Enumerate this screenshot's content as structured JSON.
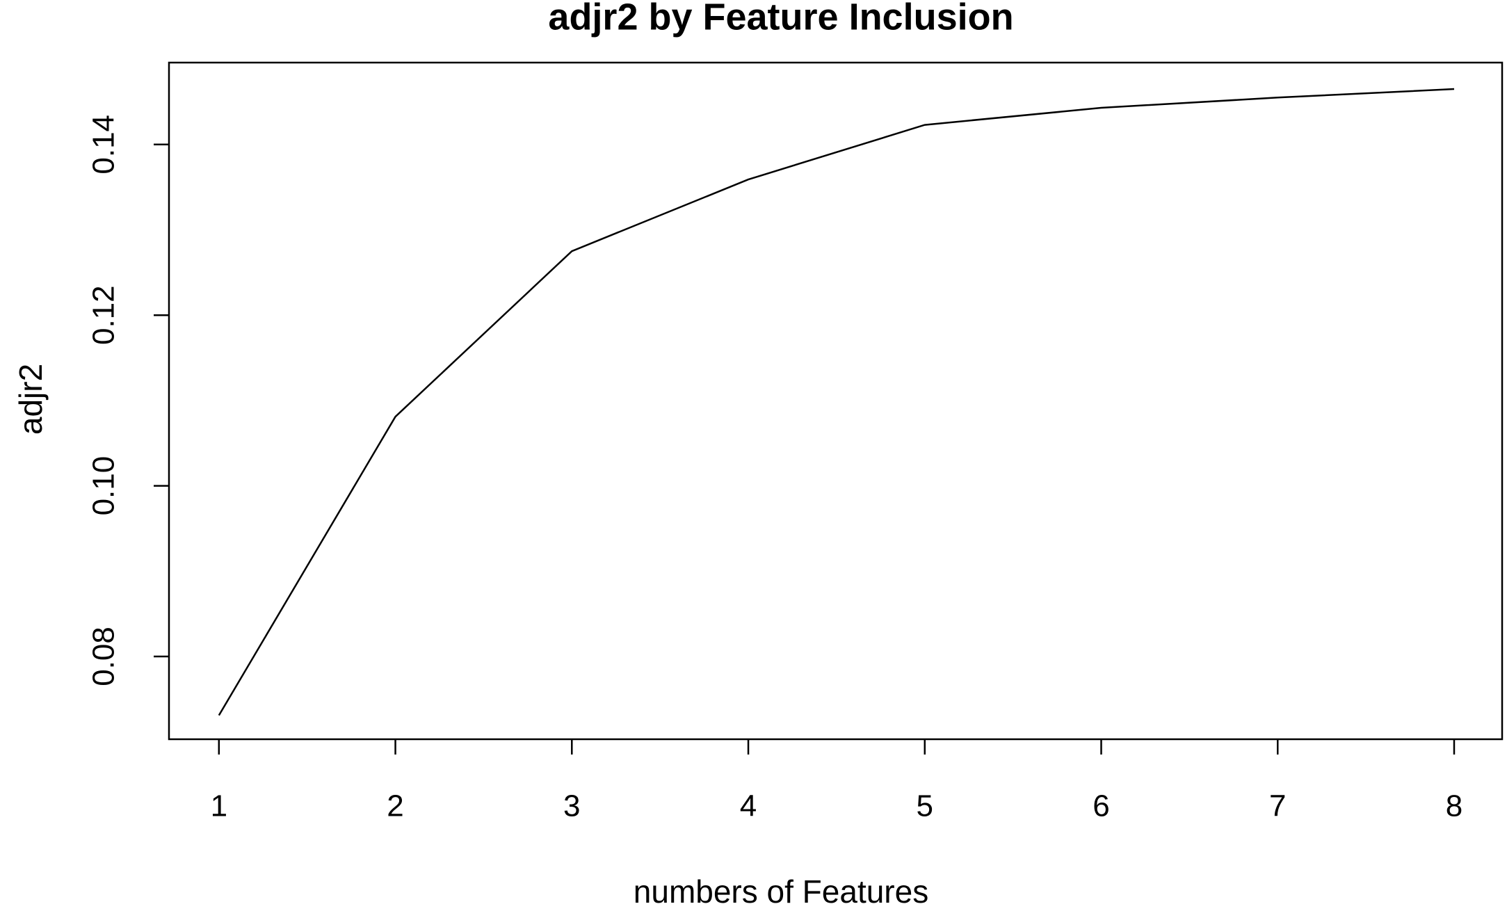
{
  "chart_data": {
    "type": "line",
    "title": "adjr2 by Feature Inclusion",
    "x_label": "numbers of Features",
    "y_label": "adjr2",
    "x": [
      1,
      2,
      3,
      4,
      5,
      6,
      7,
      8
    ],
    "series": [
      {
        "name": "adjr2",
        "color": "#000000",
        "values": [
          0.0731,
          0.1081,
          0.1275,
          0.1359,
          0.1423,
          0.1443,
          0.1455,
          0.1465
        ]
      }
    ],
    "xlim": [
      0.717,
      8.272
    ],
    "ylim": [
      0.0703,
      0.1496
    ],
    "xticks": [
      1,
      2,
      3,
      4,
      5,
      6,
      7,
      8
    ],
    "yticks": [
      0.08,
      {
        "value": 0.1,
        "label": "0.10"
      },
      0.12,
      0.14
    ]
  }
}
